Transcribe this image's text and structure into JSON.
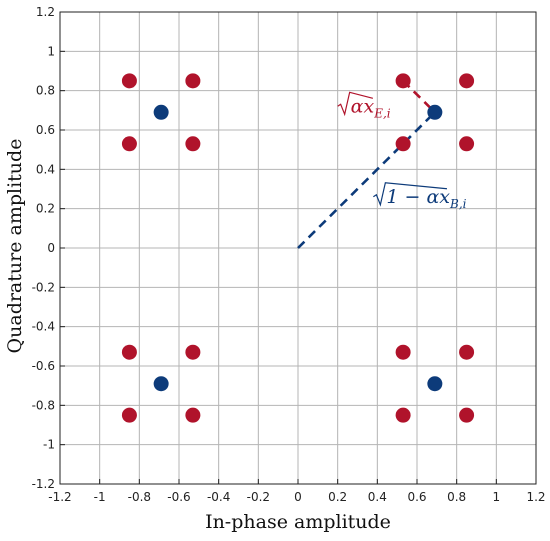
{
  "chart_data": {
    "type": "scatter",
    "title": "",
    "xlabel": "In-phase amplitude",
    "ylabel": "Quadrature amplitude",
    "xlim": [
      -1.2,
      1.2
    ],
    "ylim": [
      -1.2,
      1.2
    ],
    "xticks": [
      -1.2,
      -1,
      -0.8,
      -0.6,
      -0.4,
      -0.2,
      0,
      0.2,
      0.4,
      0.6,
      0.8,
      1,
      1.2
    ],
    "yticks": [
      -1.2,
      -1,
      -0.8,
      -0.6,
      -0.4,
      -0.2,
      0,
      0.2,
      0.4,
      0.6,
      0.8,
      1,
      1.2
    ],
    "xtick_labels": [
      "-1.2",
      "-1",
      "-0.8",
      "-0.6",
      "-0.4",
      "-0.2",
      "0",
      "0.2",
      "0.4",
      "0.6",
      "0.8",
      "1",
      "1.2"
    ],
    "ytick_labels": [
      "-1.2",
      "-1",
      "-0.8",
      "-0.6",
      "-0.4",
      "-0.2",
      "0",
      "0.2",
      "0.4",
      "0.6",
      "0.8",
      "1",
      "1.2"
    ],
    "grid": true,
    "colors": {
      "red": "#b0132b",
      "blue": "#0d3b7a",
      "grid": "#b4b4b4",
      "axis": "#222222"
    },
    "series": [
      {
        "color": "#0d3b7a",
        "points": [
          [
            -0.69,
            0.69
          ],
          [
            0.69,
            0.69
          ],
          [
            -0.69,
            -0.69
          ],
          [
            0.69,
            -0.69
          ]
        ]
      },
      {
        "color": "#b0132b",
        "points": [
          [
            -0.85,
            0.85
          ],
          [
            -0.53,
            0.85
          ],
          [
            -0.85,
            0.53
          ],
          [
            -0.53,
            0.53
          ],
          [
            0.53,
            0.85
          ],
          [
            0.85,
            0.85
          ],
          [
            0.53,
            0.53
          ],
          [
            0.85,
            0.53
          ],
          [
            -0.85,
            -0.53
          ],
          [
            -0.53,
            -0.53
          ],
          [
            -0.85,
            -0.85
          ],
          [
            -0.53,
            -0.85
          ],
          [
            0.53,
            -0.53
          ],
          [
            0.85,
            -0.53
          ],
          [
            0.53,
            -0.85
          ],
          [
            0.85,
            -0.85
          ]
        ]
      }
    ],
    "vectors": [
      {
        "from": [
          0,
          0
        ],
        "to": [
          0.69,
          0.69
        ],
        "color": "#0d3b7a",
        "style": "dashed"
      },
      {
        "from": [
          0.53,
          0.85
        ],
        "to": [
          0.69,
          0.69
        ],
        "color": "#b0132b",
        "style": "dashed"
      }
    ],
    "annotations": [
      {
        "at": [
          0.2,
          0.69
        ],
        "color": "#b0132b",
        "root": "αx",
        "sub": "E,i"
      },
      {
        "at": [
          0.38,
          0.23
        ],
        "color": "#0d3b7a",
        "root": "1 − αx",
        "sub": "B,i"
      }
    ]
  }
}
